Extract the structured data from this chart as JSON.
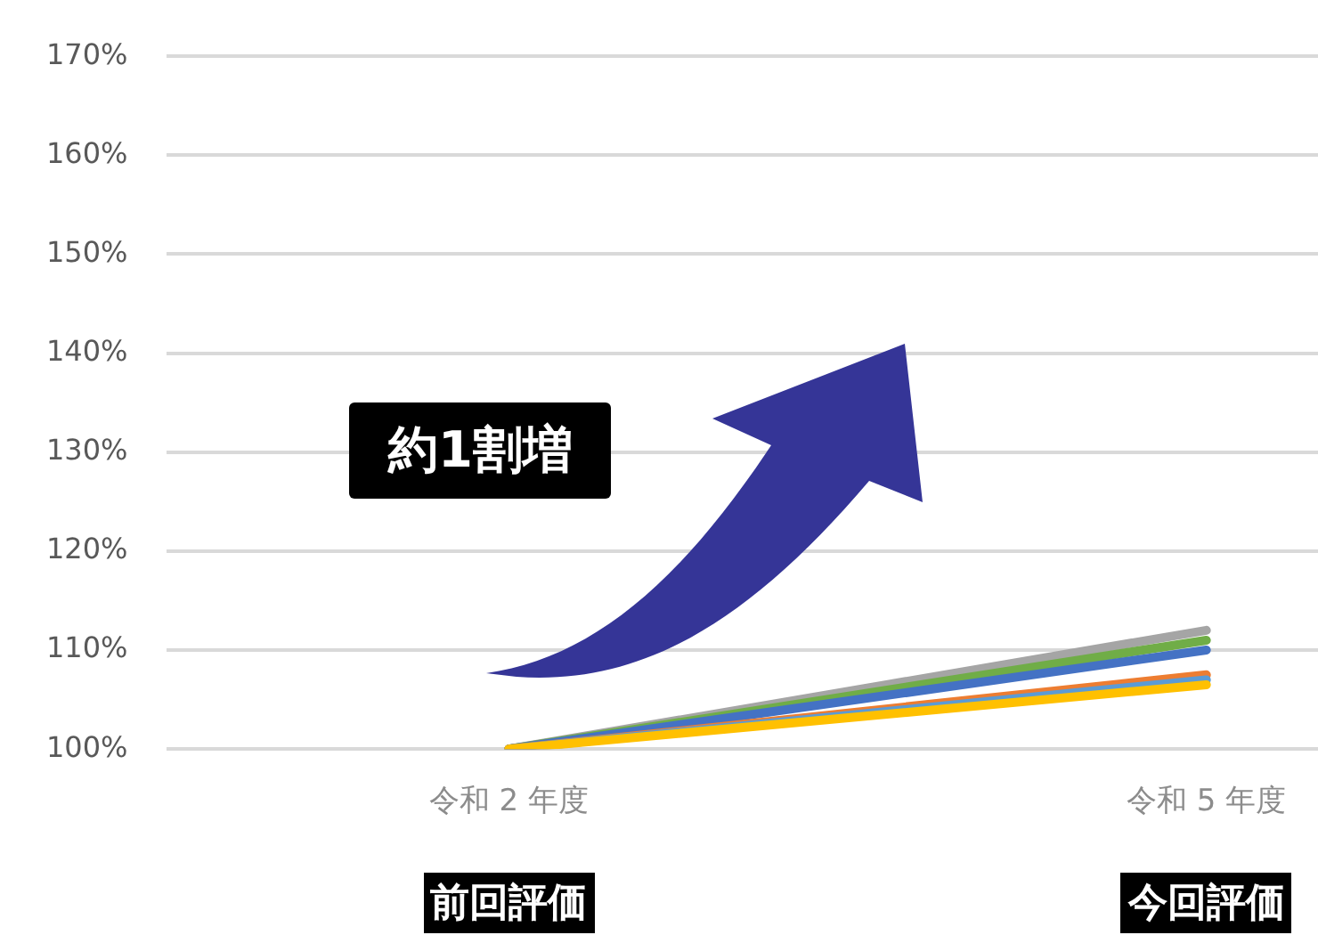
{
  "chart_data": {
    "type": "line",
    "categories": [
      "令和 2 年度",
      "令和 5 年度"
    ],
    "series": [
      {
        "color": "#a5a5a5",
        "values": [
          100,
          112
        ]
      },
      {
        "color": "#70ad47",
        "values": [
          100,
          111
        ]
      },
      {
        "color": "#4472c4",
        "values": [
          100,
          110
        ]
      },
      {
        "color": "#ed7d31",
        "values": [
          100,
          107.5
        ]
      },
      {
        "color": "#5b9bd5",
        "values": [
          100,
          107
        ]
      },
      {
        "color": "#ffc000",
        "values": [
          100,
          106.5
        ]
      }
    ],
    "ylim": [
      100,
      170
    ],
    "yticks": [
      {
        "value": 100,
        "label": "100%"
      },
      {
        "value": 110,
        "label": "110%"
      },
      {
        "value": 120,
        "label": "120%"
      },
      {
        "value": 130,
        "label": "130%"
      },
      {
        "value": 140,
        "label": "140%"
      },
      {
        "value": 150,
        "label": "150%"
      },
      {
        "value": 160,
        "label": "160%"
      },
      {
        "value": 170,
        "label": "170%"
      }
    ],
    "grid": "y",
    "legend": false,
    "marker": "none",
    "line_style": "solid",
    "annotations": [
      "約1割増",
      "前回評価",
      "今回評価"
    ]
  }
}
